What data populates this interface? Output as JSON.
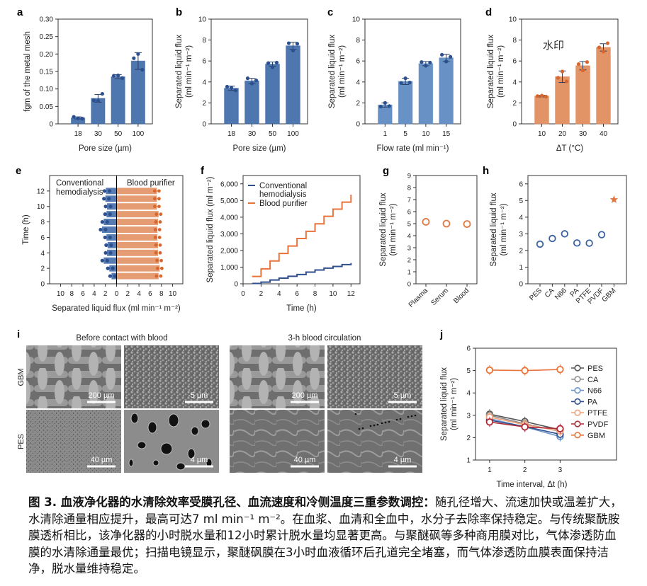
{
  "chart_data": [
    {
      "panel": "a",
      "type": "bar",
      "categories": [
        "18",
        "30",
        "50",
        "100"
      ],
      "values": [
        0.017,
        0.073,
        0.135,
        0.18
      ],
      "errors": [
        0.003,
        0.011,
        0.006,
        0.024
      ],
      "points": [
        [
          0.02,
          0.016,
          0.015
        ],
        [
          0.067,
          0.066,
          0.086
        ],
        [
          0.138,
          0.139,
          0.131
        ],
        [
          0.188,
          0.2,
          0.155
        ]
      ],
      "xlabel": "Pore size (µm)",
      "ylabel": "fgm of the metal mesh",
      "ylim": [
        0,
        0.3
      ],
      "yticks": [
        "0",
        "0.05",
        "0.10",
        "0.15",
        "0.20",
        "0.25",
        "0.30"
      ],
      "ytick_values": [
        0,
        0.05,
        0.1,
        0.15,
        0.2,
        0.25,
        0.3
      ],
      "color": "#3f6aa8"
    },
    {
      "panel": "b",
      "type": "bar",
      "categories": [
        "18",
        "30",
        "50",
        "100"
      ],
      "values": [
        3.4,
        4.1,
        5.7,
        7.45
      ],
      "errors": [
        0.2,
        0.25,
        0.2,
        0.35
      ],
      "points": [
        [
          3.55,
          3.45,
          3.2
        ],
        [
          4.35,
          3.85,
          4.15
        ],
        [
          5.8,
          5.4,
          5.85
        ],
        [
          7.7,
          7.0,
          7.65
        ]
      ],
      "xlabel": "Pore size (µm)",
      "ylabel": "Separated liquid flux (ml min⁻¹ m⁻²)",
      "ylim": [
        0,
        10
      ],
      "yticks": [
        "0",
        "2",
        "4",
        "6",
        "8",
        "10"
      ],
      "ytick_values": [
        0,
        2,
        4,
        6,
        8,
        10
      ],
      "color": "#3f6aa8"
    },
    {
      "panel": "c",
      "type": "bar",
      "categories": [
        "1",
        "5",
        "10",
        "15"
      ],
      "values": [
        1.8,
        4.05,
        5.75,
        6.3
      ],
      "errors": [
        0.2,
        0.3,
        0.2,
        0.35
      ],
      "points": [
        [
          1.65,
          2.0,
          1.7
        ],
        [
          3.9,
          4.35,
          3.95
        ],
        [
          5.9,
          5.55,
          5.85
        ],
        [
          6.6,
          5.95,
          6.4
        ]
      ],
      "xlabel": "Flow rate (ml min⁻¹)",
      "ylabel": "Separated liquid flux (ml min⁻¹ m⁻²)",
      "ylim": [
        0,
        10
      ],
      "yticks": [
        "0",
        "2",
        "4",
        "6",
        "8",
        "10"
      ],
      "ytick_values": [
        0,
        2,
        4,
        6,
        8,
        10
      ],
      "color": "#5b89c0"
    },
    {
      "panel": "d",
      "type": "bar",
      "categories": [
        "10",
        "20",
        "30",
        "40"
      ],
      "values": [
        2.65,
        4.5,
        5.55,
        7.3
      ],
      "errors": [
        0.08,
        0.55,
        0.4,
        0.35
      ],
      "points": [
        [
          2.65,
          2.7,
          2.6
        ],
        [
          4.4,
          5.0,
          4.05
        ],
        [
          5.7,
          5.1,
          5.9
        ],
        [
          7.3,
          6.9,
          7.7
        ]
      ],
      "xlabel": "ΔT (°C)",
      "ylabel": "Separated liquid flux (ml min⁻¹ m⁻²)",
      "ylim": [
        0,
        10
      ],
      "yticks": [
        "0",
        "2",
        "4",
        "6",
        "8",
        "10"
      ],
      "ytick_values": [
        0,
        2,
        4,
        6,
        8,
        10
      ],
      "watermark": "水印",
      "color": "#e08b5a"
    },
    {
      "panel": "e",
      "type": "bar",
      "orientation": "horizontal-diverging",
      "categories": [
        1,
        2,
        3,
        4,
        5,
        6,
        7,
        8,
        9,
        10,
        11,
        12
      ],
      "series": [
        {
          "name": "Conventional hemodialysis",
          "values": [
            0.9,
            1.3,
            2.3,
            1.7,
            1.6,
            1.8,
            2.6,
            2.3,
            1.8,
            1.7,
            2.0,
            1.9
          ],
          "color": "#3f6aa8"
        },
        {
          "name": "Blood purifier",
          "values": [
            7.5,
            7.7,
            7.6,
            7.4,
            7.4,
            7.3,
            7.3,
            7.4,
            7.5,
            7.2,
            7.2,
            7.2
          ],
          "color": "#e08b5a"
        }
      ],
      "legend": [
        "Conventional hemodialysis",
        "Blood purifier"
      ],
      "xlabel": "Separated liquid flux (ml min⁻¹ m⁻²)",
      "ylabel": "Time (h)",
      "xticks": [
        "10",
        "8",
        "6",
        "4",
        "2",
        "0",
        "2",
        "4",
        "6",
        "8",
        "10"
      ],
      "yticks": [
        "0",
        "2",
        "4",
        "6",
        "8",
        "10",
        "12"
      ],
      "ytick_values": [
        0,
        2,
        4,
        6,
        8,
        10,
        12
      ],
      "ylim": [
        0,
        14
      ]
    },
    {
      "panel": "f",
      "type": "line",
      "step": true,
      "x": [
        1,
        2,
        3,
        4,
        5,
        6,
        7,
        8,
        9,
        10,
        11,
        12
      ],
      "series": [
        {
          "name": "Conventional hemodialysis",
          "values": [
            20,
            100,
            230,
            340,
            450,
            560,
            700,
            830,
            940,
            1040,
            1150,
            1250
          ],
          "color": "#2f4f8f"
        },
        {
          "name": "Blood purifier",
          "values": [
            440,
            900,
            1370,
            1820,
            2270,
            2720,
            3150,
            3600,
            4050,
            4480,
            4900,
            5350
          ],
          "color": "#e8743b"
        }
      ],
      "legend": [
        "Conventional hemodialysis",
        "Blood purifier"
      ],
      "xlabel": "Time (h)",
      "ylabel": "Separated liquid flux (ml m⁻²)",
      "xlim": [
        0,
        13
      ],
      "ylim": [
        0,
        6500
      ],
      "xticks": [
        "0",
        "2",
        "4",
        "6",
        "8",
        "10",
        "12"
      ],
      "xtick_values": [
        0,
        2,
        4,
        6,
        8,
        10,
        12
      ],
      "yticks": [
        "0",
        "1,000",
        "2,000",
        "3,000",
        "4,000",
        "5,000",
        "6,000"
      ],
      "ytick_values": [
        0,
        1000,
        2000,
        3000,
        4000,
        5000,
        6000
      ]
    },
    {
      "panel": "g",
      "type": "scatter",
      "categories": [
        "Plasma",
        "Serum",
        "Blood"
      ],
      "values": [
        5.15,
        5.0,
        4.97
      ],
      "xlabel": "",
      "ylabel": "Separated liquid flux (ml min⁻¹ m⁻²)",
      "ylim": [
        0,
        9
      ],
      "yticks": [
        "0",
        "1",
        "2",
        "3",
        "4",
        "5",
        "6",
        "7",
        "8",
        "9"
      ],
      "ytick_values": [
        0,
        1,
        2,
        3,
        4,
        5,
        6,
        7,
        8,
        9
      ],
      "color": "#e07a45"
    },
    {
      "panel": "h",
      "type": "scatter",
      "categories": [
        "PES",
        "CA",
        "N66",
        "PA",
        "PTFE",
        "PVDF",
        "GBM"
      ],
      "values": [
        2.38,
        2.72,
        3.0,
        2.45,
        2.44,
        2.95,
        5.05
      ],
      "markers": [
        "circle",
        "circle",
        "circle",
        "circle",
        "circle",
        "circle",
        "star"
      ],
      "xlabel": "",
      "ylabel": "Separated liquid flux (ml min⁻¹ m⁻²)",
      "ylim": [
        0,
        6.5
      ],
      "yticks": [
        "0",
        "1",
        "2",
        "3",
        "4",
        "5",
        "6"
      ],
      "ytick_values": [
        0,
        1,
        2,
        3,
        4,
        5,
        6
      ],
      "color": "#3b62a3",
      "highlight_color": "#e07a45"
    },
    {
      "panel": "j",
      "type": "line",
      "x": [
        1,
        2,
        3
      ],
      "series": [
        {
          "name": "PES",
          "values": [
            3.05,
            2.72,
            2.35
          ],
          "color": "#555555"
        },
        {
          "name": "CA",
          "values": [
            3.0,
            2.62,
            2.28
          ],
          "color": "#8c8c8c"
        },
        {
          "name": "N66",
          "values": [
            2.85,
            2.48,
            2.05
          ],
          "color": "#6c95cc"
        },
        {
          "name": "PA",
          "values": [
            2.78,
            2.5,
            2.15
          ],
          "color": "#2f4f8f"
        },
        {
          "name": "PTFE",
          "values": [
            2.92,
            2.58,
            2.3
          ],
          "color": "#f0a27a"
        },
        {
          "name": "PVDF",
          "values": [
            2.7,
            2.48,
            2.4
          ],
          "color": "#b02a36"
        },
        {
          "name": "GBM",
          "values": [
            5.02,
            5.0,
            5.05
          ],
          "color": "#e8743b"
        }
      ],
      "xlabel": "Time interval, Δt (h)",
      "ylabel": "Separated liquid flux (ml min⁻¹ m⁻²)",
      "xlim": [
        0.6,
        4.6
      ],
      "ylim": [
        1,
        6
      ],
      "xticks": [
        "1",
        "2",
        "3"
      ],
      "xtick_values": [
        1,
        2,
        3
      ],
      "yticks": [
        "1",
        "2",
        "3",
        "4",
        "5",
        "6"
      ],
      "ytick_values": [
        1,
        2,
        3,
        4,
        5,
        6
      ],
      "legend_position": "right"
    }
  ],
  "panel_labels": {
    "a": "a",
    "b": "b",
    "c": "c",
    "d": "d",
    "e": "e",
    "f": "f",
    "g": "g",
    "h": "h",
    "i": "i",
    "j": "j"
  },
  "sem": {
    "title_before": "Before contact with blood",
    "title_after": "3-h blood circulation",
    "row_labels": [
      "GBM",
      "PES"
    ],
    "images": [
      {
        "name": "gbm-before-low",
        "scale": "200 µm"
      },
      {
        "name": "gbm-before-high",
        "scale": "5 µm"
      },
      {
        "name": "gbm-after-low",
        "scale": "200 µm"
      },
      {
        "name": "gbm-after-high",
        "scale": "5 µm"
      },
      {
        "name": "pes-before-low",
        "scale": "40 µm"
      },
      {
        "name": "pes-before-high",
        "scale": "4 µm"
      },
      {
        "name": "pes-after-low",
        "scale": "40 µm"
      },
      {
        "name": "pes-after-high",
        "scale": "4 µm"
      }
    ]
  },
  "caption": {
    "bold": "图 3. 血液净化器的水清除效率受膜孔径、血流速度和冷侧温度三重参数调控：",
    "text": "随孔径增大、流速加快或温差扩大，水清除通量相应提升，最高可达7 ml min⁻¹ m⁻²。在血浆、血清和全血中，水分子去除率保持稳定。与传统聚酰胺膜透析相比，该净化器的小时脱水量和12小时累计脱水量均显著更高。与聚醚砜等多种商用膜对比，气体渗透防血膜的水清除通量最优；扫描电镜显示，聚醚砜膜在3小时血液循环后孔道完全堵塞，而气体渗透防血膜表面保持洁净，脱水量维持稳定。"
  }
}
